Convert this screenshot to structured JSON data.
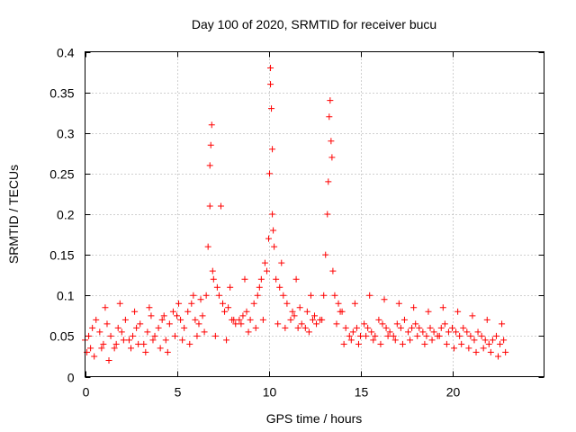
{
  "chart_data": {
    "type": "scatter",
    "title": "Day 100 of 2020, SRMTID for receiver bucu",
    "xlabel": "GPS time / hours",
    "ylabel": "SRMTID / TECUs",
    "xlim": [
      0,
      25
    ],
    "ylim": [
      0,
      0.4
    ],
    "grid": true,
    "legend": "none",
    "marker": "+",
    "color": "#ff0000",
    "x_ticks": [
      0,
      5,
      10,
      15,
      20
    ],
    "x_tick_labels": [
      "0",
      "5",
      "10",
      "15",
      "20"
    ],
    "y_ticks": [
      0,
      0.05,
      0.1,
      0.15,
      0.2,
      0.25,
      0.3,
      0.35,
      0.4
    ],
    "y_tick_labels": [
      "0",
      "0.05",
      "0.1",
      "0.15",
      "0.2",
      "0.25",
      "0.3",
      "0.35",
      "0.4"
    ],
    "series": [
      {
        "name": "SRMTID",
        "x": [
          0.0,
          0.2,
          0.4,
          0.6,
          0.8,
          1.0,
          1.2,
          1.4,
          1.6,
          1.8,
          2.0,
          2.2,
          2.4,
          2.6,
          2.8,
          3.0,
          3.2,
          3.4,
          3.6,
          3.8,
          4.0,
          4.2,
          4.4,
          4.6,
          4.8,
          5.0,
          5.2,
          5.4,
          5.6,
          5.8,
          6.0,
          6.2,
          6.4,
          6.6,
          6.7,
          6.8,
          6.8,
          6.85,
          6.9,
          6.95,
          7.0,
          7.2,
          7.3,
          7.4,
          7.5,
          7.6,
          7.8,
          8.0,
          8.2,
          8.4,
          8.6,
          8.8,
          9.0,
          9.2,
          9.4,
          9.6,
          9.8,
          10.0,
          10.05,
          10.1,
          10.1,
          10.15,
          10.2,
          10.2,
          10.25,
          10.3,
          10.4,
          10.6,
          10.8,
          11.0,
          11.2,
          11.4,
          11.6,
          11.8,
          12.0,
          12.2,
          12.4,
          12.6,
          12.8,
          13.0,
          13.1,
          13.2,
          13.25,
          13.3,
          13.35,
          13.4,
          13.45,
          13.5,
          13.6,
          13.8,
          14.0,
          14.2,
          14.4,
          14.6,
          14.8,
          15.0,
          15.2,
          15.4,
          15.6,
          15.8,
          16.0,
          16.2,
          16.4,
          16.6,
          16.8,
          17.0,
          17.2,
          17.4,
          17.6,
          17.8,
          18.0,
          18.2,
          18.4,
          18.6,
          18.8,
          19.0,
          19.2,
          19.4,
          19.6,
          19.8,
          20.0,
          20.2,
          20.4,
          20.6,
          20.8,
          21.0,
          21.2,
          21.4,
          21.6,
          21.8,
          22.0,
          22.2,
          22.4,
          22.6,
          22.8,
          0.1,
          0.5,
          0.9,
          1.3,
          1.7,
          2.1,
          2.5,
          2.9,
          3.3,
          3.7,
          4.1,
          4.5,
          4.9,
          5.3,
          5.7,
          6.1,
          6.5,
          7.1,
          7.7,
          8.1,
          8.5,
          8.9,
          9.3,
          9.7,
          10.5,
          10.9,
          11.3,
          11.7,
          12.1,
          12.5,
          12.9,
          13.7,
          14.1,
          14.5,
          14.9,
          15.3,
          15.7,
          16.1,
          16.5,
          16.9,
          17.3,
          17.7,
          18.1,
          18.5,
          18.9,
          19.3,
          19.7,
          20.1,
          20.5,
          20.9,
          21.3,
          21.7,
          22.1,
          22.5,
          22.9,
          0.3,
          1.1,
          1.9,
          2.7,
          3.5,
          4.3,
          5.1,
          5.9,
          6.3,
          7.9,
          8.7,
          9.5,
          9.9,
          10.7,
          11.5,
          12.3,
          13.9,
          14.7,
          15.5,
          16.3,
          17.1,
          17.9,
          18.7,
          19.5,
          20.3,
          21.1,
          21.9,
          22.7
        ],
        "y": [
          0.045,
          0.05,
          0.06,
          0.07,
          0.055,
          0.04,
          0.065,
          0.05,
          0.035,
          0.06,
          0.055,
          0.07,
          0.045,
          0.05,
          0.06,
          0.065,
          0.04,
          0.055,
          0.075,
          0.05,
          0.06,
          0.07,
          0.045,
          0.065,
          0.08,
          0.075,
          0.07,
          0.06,
          0.08,
          0.09,
          0.07,
          0.065,
          0.075,
          0.1,
          0.16,
          0.21,
          0.26,
          0.285,
          0.31,
          0.13,
          0.12,
          0.11,
          0.1,
          0.21,
          0.09,
          0.08,
          0.085,
          0.07,
          0.065,
          0.07,
          0.075,
          0.08,
          0.07,
          0.09,
          0.1,
          0.12,
          0.14,
          0.17,
          0.25,
          0.36,
          0.38,
          0.33,
          0.28,
          0.2,
          0.18,
          0.16,
          0.12,
          0.11,
          0.1,
          0.09,
          0.07,
          0.075,
          0.06,
          0.065,
          0.06,
          0.055,
          0.07,
          0.065,
          0.07,
          0.1,
          0.15,
          0.2,
          0.24,
          0.32,
          0.34,
          0.29,
          0.27,
          0.13,
          0.1,
          0.09,
          0.08,
          0.06,
          0.05,
          0.055,
          0.06,
          0.05,
          0.065,
          0.06,
          0.055,
          0.05,
          0.07,
          0.065,
          0.06,
          0.055,
          0.05,
          0.065,
          0.06,
          0.07,
          0.055,
          0.06,
          0.065,
          0.06,
          0.055,
          0.05,
          0.06,
          0.055,
          0.05,
          0.06,
          0.065,
          0.055,
          0.06,
          0.055,
          0.05,
          0.06,
          0.055,
          0.05,
          0.045,
          0.055,
          0.05,
          0.045,
          0.04,
          0.045,
          0.05,
          0.04,
          0.045,
          0.03,
          0.025,
          0.035,
          0.02,
          0.04,
          0.045,
          0.035,
          0.04,
          0.03,
          0.045,
          0.035,
          0.03,
          0.05,
          0.045,
          0.04,
          0.05,
          0.055,
          0.05,
          0.045,
          0.07,
          0.065,
          0.055,
          0.06,
          0.07,
          0.065,
          0.06,
          0.08,
          0.085,
          0.08,
          0.075,
          0.07,
          0.065,
          0.04,
          0.045,
          0.04,
          0.05,
          0.045,
          0.04,
          0.05,
          0.045,
          0.04,
          0.045,
          0.05,
          0.04,
          0.045,
          0.05,
          0.04,
          0.035,
          0.04,
          0.035,
          0.03,
          0.035,
          0.03,
          0.025,
          0.03,
          0.035,
          0.085,
          0.09,
          0.08,
          0.085,
          0.075,
          0.09,
          0.1,
          0.095,
          0.11,
          0.12,
          0.11,
          0.13,
          0.14,
          0.12,
          0.1,
          0.08,
          0.09,
          0.1,
          0.095,
          0.09,
          0.085,
          0.08,
          0.085,
          0.08,
          0.075,
          0.07,
          0.065
        ]
      }
    ]
  }
}
